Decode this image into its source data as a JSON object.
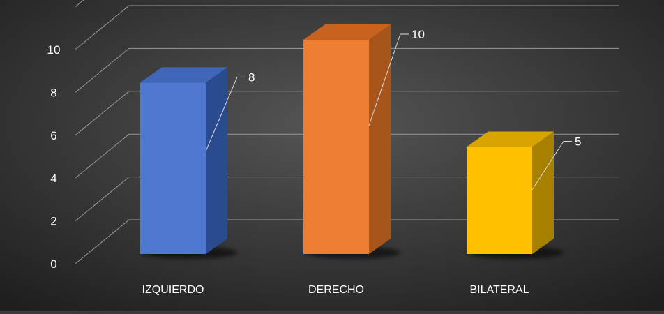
{
  "chart_data": {
    "type": "bar",
    "categories": [
      "IZQUIERDO",
      "DERECHO",
      "BILATERAL"
    ],
    "values": [
      8,
      10,
      5
    ],
    "data_labels": [
      "8",
      "10",
      "5"
    ],
    "title": "",
    "xlabel": "",
    "ylabel": "",
    "ylim": [
      0,
      12
    ],
    "yticks": [
      0,
      2,
      4,
      6,
      8,
      10
    ],
    "ytick_labels": [
      "0",
      "2",
      "4",
      "6",
      "8",
      "10"
    ],
    "grid": true,
    "legend": "none",
    "style": "3d-column",
    "colors": {
      "background_center": "#555555",
      "background_edge": "#1f1f1f",
      "gridline": "#9a9a9a",
      "text": "#ffffff",
      "bars": [
        {
          "front": "#4f79d0",
          "side": "#2b4b90",
          "top": "#3f66b8"
        },
        {
          "front": "#ed7d31",
          "side": "#a8551b",
          "top": "#c8621f"
        },
        {
          "front": "#ffc000",
          "side": "#a88000",
          "top": "#d9a400"
        }
      ]
    }
  }
}
